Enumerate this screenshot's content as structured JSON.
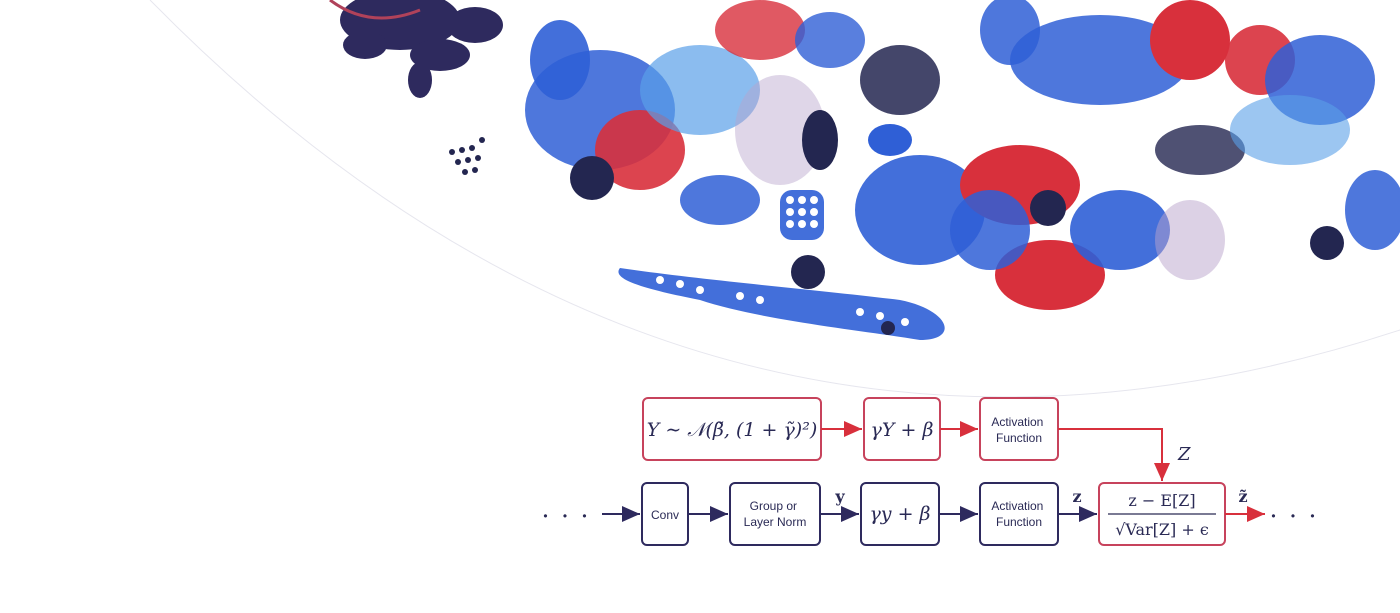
{
  "colors": {
    "navy": "#2e2a5e",
    "red": "#d8303c",
    "blue": "#2f5fd6",
    "light_blue": "#5aa0e8",
    "lilac": "#b9a3cc",
    "dark_dot": "#232650"
  },
  "diagram": {
    "top_row": {
      "distribution": "Y ∼ 𝒩(β̃, (1 + γ̃)²)",
      "affine": "γY + β",
      "activation": "Activation Function"
    },
    "top_to_norm_label": "Z",
    "bottom_row": {
      "leading_ellipsis": "• • •",
      "conv": "Conv",
      "norm": "Group or Layer Norm",
      "y_label": "y",
      "affine": "γy + β",
      "activation": "Activation Function",
      "z_label": "z",
      "normalize_numerator": "z − E[Z]",
      "normalize_denominator": "√Var[Z] + ϵ",
      "output_label": "z̃",
      "trailing_ellipsis": "• • •"
    }
  }
}
